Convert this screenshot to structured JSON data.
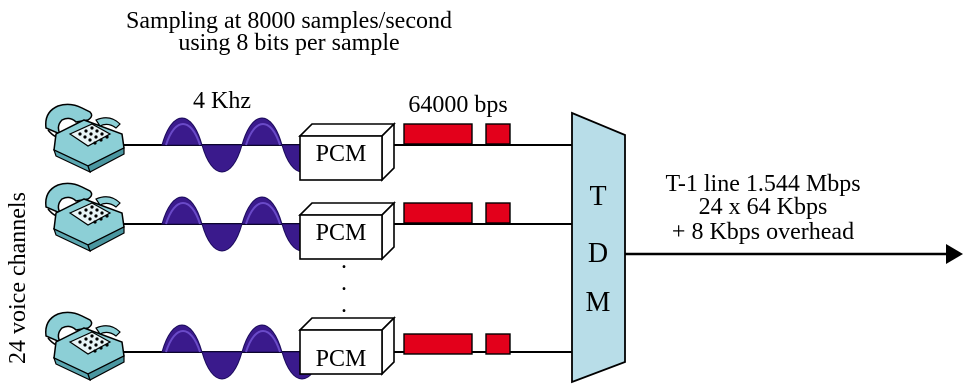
{
  "header": {
    "line1": "Sampling at 8000 samples/second",
    "line2": "using 8 bits per sample"
  },
  "analog_label": "4 Khz",
  "digital_label": "64000 bps",
  "side_label": "24 voice channels",
  "encoder_label": "PCM",
  "ellipsis": ". . .",
  "mux": {
    "letters": [
      "T",
      "D",
      "M"
    ]
  },
  "output": {
    "line1": "T-1 line 1.544 Mbps",
    "line2": "24 x 64 Kbps",
    "line3": "+ 8 Kbps overhead"
  },
  "colors": {
    "wave": "#3a1a8c",
    "pulse": "#e3001b",
    "mux_fill": "#b8dde8",
    "phone": "#8ccfd6"
  },
  "icons": {
    "phone": "telephone-icon",
    "wave": "sine-wave-icon",
    "box": "pcm-box",
    "pulse": "digital-pulse-icon"
  }
}
